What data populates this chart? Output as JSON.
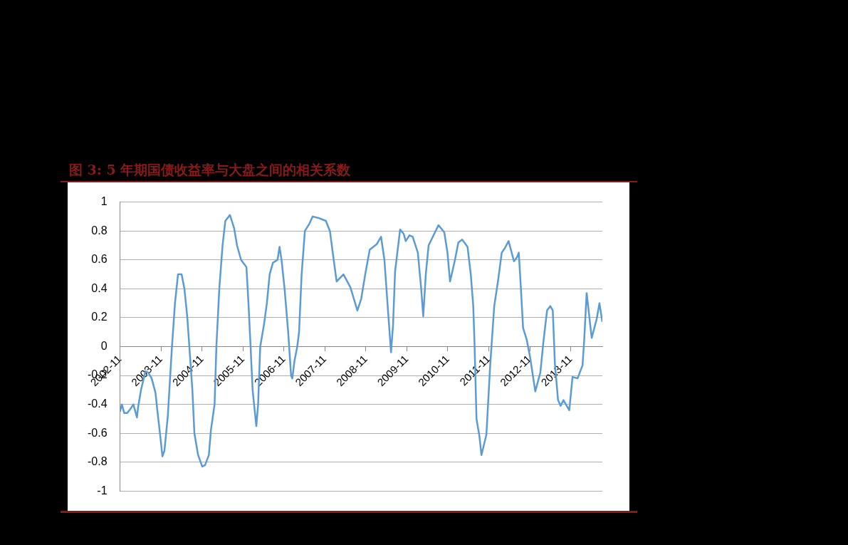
{
  "chart_data": {
    "type": "line",
    "title": "图 3: 5 年期国债收益率与大盘之间的相关系数",
    "series": [
      {
        "color": "#5b9bd5",
        "x": [
          "2002-11-01",
          "2002-11-17",
          "2002-12-09",
          "2003-01-04",
          "2003-02-03",
          "2003-02-28",
          "2003-04-01",
          "2003-04-11",
          "2003-05-07",
          "2003-06-16",
          "2003-07-11",
          "2003-08-10",
          "2003-09-13",
          "2003-10-01",
          "2003-10-26",
          "2003-11-14",
          "2003-12-02",
          "2004-01-01",
          "2004-01-11",
          "2004-02-07",
          "2004-03-05",
          "2004-04-01",
          "2004-05-03",
          "2004-05-28",
          "2004-06-23",
          "2004-07-11",
          "2004-08-07",
          "2004-08-25",
          "2004-09-27",
          "2004-11-03",
          "2004-11-28",
          "2005-01-01",
          "2005-01-19",
          "2005-02-21",
          "2005-03-09",
          "2005-04-04",
          "2005-05-03",
          "2005-05-28",
          "2005-07-08",
          "2005-08-14",
          "2005-09-09",
          "2005-10-15",
          "2005-12-02",
          "2005-12-20",
          "2006-01-08",
          "2006-01-15",
          "2006-01-26",
          "2006-02-28",
          "2006-03-16",
          "2006-04-04",
          "2006-05-07",
          "2006-06-02",
          "2006-06-27",
          "2006-07-26",
          "2006-09-05",
          "2006-09-23",
          "2006-10-11",
          "2006-11-07",
          "2006-12-09",
          "2007-01-04",
          "2007-01-15",
          "2007-02-03",
          "2007-02-28",
          "2007-03-16",
          "2007-04-08",
          "2007-05-07",
          "2007-06-16",
          "2007-07-15",
          "2007-09-05",
          "2007-11-10",
          "2007-12-16",
          "2008-01-19",
          "2008-02-14",
          "2008-04-15",
          "2008-06-16",
          "2008-08-17",
          "2008-09-20",
          "2008-10-26",
          "2008-12-05",
          "2009-02-07",
          "2009-03-16",
          "2009-04-15",
          "2009-05-17",
          "2009-06-13",
          "2009-07-01",
          "2009-07-19",
          "2009-09-02",
          "2009-10-04",
          "2009-10-22",
          "2009-11-25",
          "2009-12-23",
          "2010-02-07",
          "2010-03-09",
          "2010-03-27",
          "2010-04-19",
          "2010-05-14",
          "2010-06-27",
          "2010-08-10",
          "2010-10-01",
          "2010-10-29",
          "2010-11-21",
          "2011-01-04",
          "2011-02-03",
          "2011-03-09",
          "2011-04-26",
          "2011-05-25",
          "2011-06-16",
          "2011-06-27",
          "2011-07-15",
          "2011-08-10",
          "2011-08-28",
          "2011-10-11",
          "2011-11-14",
          "2011-12-20",
          "2012-01-22",
          "2012-02-25",
          "2012-03-23",
          "2012-04-26",
          "2012-06-13",
          "2012-07-11",
          "2012-07-26",
          "2012-08-14",
          "2012-09-02",
          "2012-10-04",
          "2012-11-03",
          "2012-12-20",
          "2013-02-03",
          "2013-03-02",
          "2013-04-04",
          "2013-05-03",
          "2013-05-25",
          "2013-06-13",
          "2013-07-11",
          "2013-08-03",
          "2013-08-28",
          "2013-10-19",
          "2013-11-17",
          "2014-01-01",
          "2014-02-14",
          "2014-02-28",
          "2014-03-23",
          "2014-05-07",
          "2014-06-20",
          "2014-07-15",
          "2014-08-10"
        ],
        "values": [
          -0.45,
          -0.4,
          -0.46,
          -0.46,
          -0.43,
          -0.4,
          -0.49,
          -0.42,
          -0.3,
          -0.17,
          -0.18,
          -0.22,
          -0.32,
          -0.45,
          -0.62,
          -0.76,
          -0.72,
          -0.48,
          -0.35,
          0,
          0.3,
          0.5,
          0.5,
          0.4,
          0.2,
          0,
          -0.3,
          -0.6,
          -0.75,
          -0.83,
          -0.82,
          -0.75,
          -0.58,
          -0.4,
          0,
          0.4,
          0.7,
          0.87,
          0.91,
          0.82,
          0.7,
          0.6,
          0.55,
          0.3,
          0,
          -0.12,
          -0.3,
          -0.55,
          -0.4,
          0,
          0.15,
          0.3,
          0.5,
          0.58,
          0.6,
          0.69,
          0.6,
          0.4,
          0.1,
          -0.2,
          -0.22,
          -0.1,
          0,
          0.1,
          0.5,
          0.8,
          0.85,
          0.9,
          0.89,
          0.87,
          0.8,
          0.6,
          0.45,
          0.5,
          0.41,
          0.25,
          0.33,
          0.5,
          0.67,
          0.71,
          0.76,
          0.6,
          0.25,
          -0.04,
          0.15,
          0.52,
          0.81,
          0.78,
          0.73,
          0.77,
          0.76,
          0.65,
          0.4,
          0.21,
          0.5,
          0.7,
          0.77,
          0.84,
          0.79,
          0.65,
          0.45,
          0.6,
          0.72,
          0.74,
          0.69,
          0.5,
          0.28,
          0.03,
          -0.5,
          -0.62,
          -0.75,
          -0.61,
          -0.13,
          0.28,
          0.45,
          0.65,
          0.68,
          0.73,
          0.59,
          0.62,
          0.65,
          0.4,
          0.13,
          0.05,
          -0.07,
          -0.31,
          -0.18,
          0.03,
          0.25,
          0.28,
          0.25,
          -0.12,
          -0.37,
          -0.41,
          -0.37,
          -0.44,
          -0.21,
          -0.22,
          -0.13,
          0.03,
          0.37,
          0.06,
          0.19,
          0.3,
          0.17
        ]
      }
    ],
    "xlim": [
      "2002-11",
      "2014-08-10"
    ],
    "xticks": [
      "2002-11",
      "2003-11",
      "2004-11",
      "2005-11",
      "2006-11",
      "2007-11",
      "2008-11",
      "2009-11",
      "2010-11",
      "2011-11",
      "2012-11",
      "2013-11"
    ],
    "ylim": [
      -1,
      1
    ],
    "yticks": [
      -1,
      -0.8,
      -0.6,
      -0.4,
      -0.2,
      0,
      0.2,
      0.4,
      0.6,
      0.8,
      1
    ],
    "grid": "y",
    "legend": false,
    "marker": "none",
    "line_style": "solid"
  }
}
